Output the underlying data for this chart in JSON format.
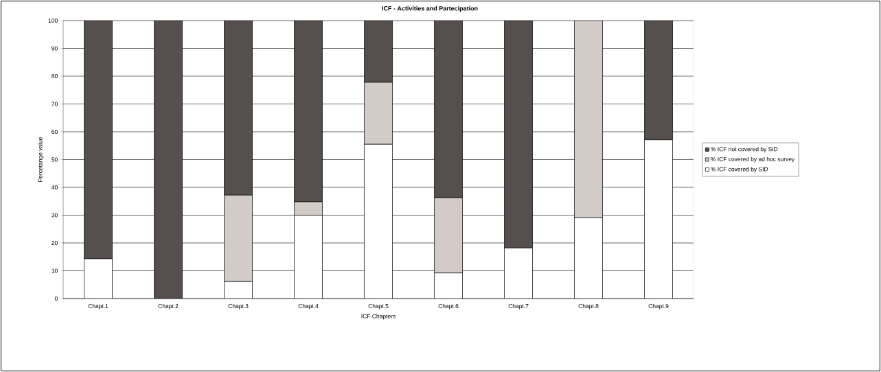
{
  "chart_data": {
    "type": "bar",
    "stacked": true,
    "title": "ICF - Activities and Partecipation",
    "xlabel": "ICF Chapters",
    "ylabel": "Percetange value",
    "categories": [
      "Chapt.1",
      "Chapt.2",
      "Chapt.3",
      "Chapt.4",
      "Chapt.5",
      "Chapt.6",
      "Chapt.7",
      "Chapt.8",
      "Chapt.9"
    ],
    "series": [
      {
        "name": "% ICF covered by SID",
        "color": "#ffffff",
        "values": [
          14.3,
          0,
          6.1,
          30,
          55.5,
          9.2,
          18.2,
          29.2,
          57.1
        ]
      },
      {
        "name": "% ICF covered by ad hoc survey",
        "color": "#d3cbc7",
        "values": [
          0,
          0,
          31.1,
          4.8,
          22.3,
          27.1,
          0,
          70.8,
          0
        ]
      },
      {
        "name": "% ICF not covered by SID",
        "color": "#55504d",
        "values": [
          85.7,
          100,
          62.8,
          65.2,
          22.2,
          63.7,
          81.8,
          0,
          42.9
        ]
      }
    ],
    "ylim": [
      0,
      100
    ],
    "yticks": [
      0,
      10,
      20,
      30,
      40,
      50,
      60,
      70,
      80,
      90,
      100
    ],
    "grid": "y",
    "legend": "right"
  }
}
